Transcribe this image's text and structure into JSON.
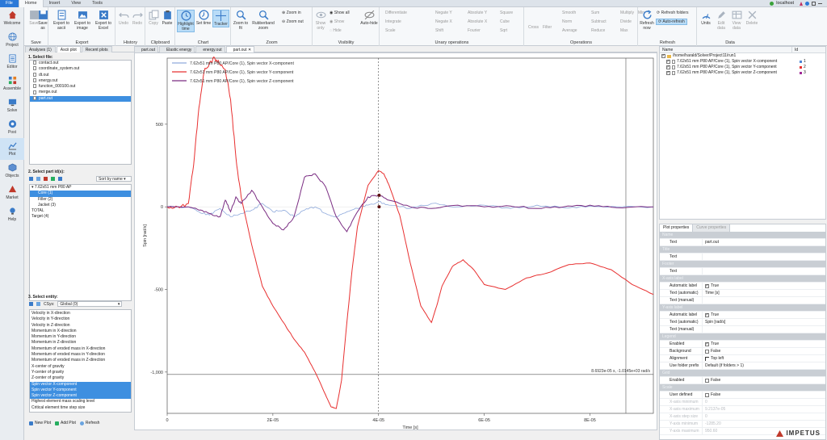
{
  "menu": {
    "tabs": [
      "File",
      "Home",
      "Insert",
      "View",
      "Tools"
    ],
    "active": "Home",
    "host": "localhost"
  },
  "ribbon": {
    "groups": [
      {
        "label": "Save",
        "buttons": [
          "Save",
          "Save as"
        ]
      },
      {
        "label": "Export",
        "buttons": [
          "Export to ascii",
          "Export to image",
          "Export to Excel"
        ]
      },
      {
        "label": "History",
        "buttons": [
          "Undo",
          "Redo"
        ]
      },
      {
        "label": "Clipboard",
        "buttons": [
          "Copy",
          "Paste"
        ]
      },
      {
        "label": "Chart",
        "buttons": [
          "Highlight time",
          "Set time",
          "Tracker"
        ]
      },
      {
        "label": "Zoom",
        "buttons": [
          "Zoom to fit",
          "Rubberband zoom"
        ],
        "small": [
          "Zoom in",
          "Zoom out"
        ]
      },
      {
        "label": "Visibility",
        "buttons": [
          "Show only"
        ],
        "small": [
          "Show all",
          "Show",
          "Hide",
          "Auto-hide"
        ]
      },
      {
        "label": "Unary operations",
        "small": [
          "Differentiate",
          "Integrate",
          "Scale",
          "Negate Y",
          "Negate X",
          "Shift",
          "Absolute Y",
          "Absolute X",
          "Fourier",
          "Square",
          "Cube",
          "Sqrt"
        ]
      },
      {
        "label": "Operations",
        "small": [
          "Cross",
          "Filter",
          "Smooth",
          "Norm",
          "Average",
          "Sum",
          "Subtract",
          "Reduce",
          "Multiply",
          "Divide",
          "Min",
          "Max"
        ]
      },
      {
        "label": "Refresh",
        "buttons": [
          "Refresh now"
        ],
        "small": [
          "Refresh folders",
          "Auto-refresh"
        ]
      },
      {
        "label": "Data",
        "buttons": [
          "Units",
          "Edit data",
          "View data",
          "Delete"
        ]
      }
    ]
  },
  "sidebar": {
    "items": [
      "Welcome",
      "Project",
      "Editor",
      "Assemble",
      "Solve",
      "Post",
      "Plot",
      "Objects",
      "Market",
      "Help"
    ],
    "active": "Plot"
  },
  "left_panel": {
    "tabs": [
      "Analyses (1)",
      "Ascii plot",
      "Recent plots"
    ],
    "active_tab": "Ascii plot",
    "select_file": {
      "title": "1. Select file:",
      "files": [
        "contact.out",
        "coordinate_system.out",
        "dt.out",
        "energy.out",
        "function_000100.out",
        "merge.out",
        "part.out"
      ],
      "selected": "part.out"
    },
    "select_part": {
      "title": "2. Select part id(s):",
      "sort": "Sort by name",
      "items": [
        "7.62x51 mm P80 AP",
        "Core (1)",
        "Filler (2)",
        "Jacket (3)",
        "TOTAL",
        "Target (4)"
      ],
      "selected": "Core (1)"
    },
    "select_entity": {
      "title": "3. Select entity:",
      "csys_label": "CSys:",
      "csys": "Global (0)",
      "items": [
        "Velocity in X-direction",
        "Velocity in Y-direction",
        "Velocity in Z-direction",
        "Momentum in X-direction",
        "Momentum in Y-direction",
        "Momentum in Z-direction",
        "Momentum of eroded mass in X-direction",
        "Momentum of eroded mass in Y-direction",
        "Momentum of eroded mass in Z-direction",
        "X-center of gravity",
        "Y-center of gravity",
        "Z-center of gravity",
        "Spin vector X-component",
        "Spin vector Y-component",
        "Spin vector Z-component",
        "Highest element mass scaling level",
        "Critical element time step size"
      ],
      "selected": [
        "Spin vector X-component",
        "Spin vector Y-component",
        "Spin vector Z-component"
      ]
    },
    "buttons": [
      "New Plot",
      "Add Plot",
      "Refresh"
    ]
  },
  "center_tabs": {
    "tabs": [
      "part.out",
      "Elastic energy",
      "energy.out",
      "part.out"
    ],
    "active_index": 3
  },
  "chart_data": {
    "type": "line",
    "xlabel": "Time [s]",
    "ylabel": "Spin [rad/s]",
    "xlim": [
      0,
      9.2e-05
    ],
    "ylim": [
      -1250,
      900
    ],
    "xticks": [
      0,
      2e-05,
      4e-05,
      6e-05,
      8e-05
    ],
    "xtick_labels": [
      "0",
      "2E-05",
      "4E-05",
      "6E-05",
      "8E-05"
    ],
    "yticks": [
      500,
      0,
      -500,
      -1000
    ],
    "ytick_labels": [
      "500",
      "0",
      "-500",
      "-1,000"
    ],
    "legend_position": "top-left",
    "tracker_label": "8.6923e-05 s, -1.0145e+03 rad/s",
    "tracker_x": 4e-05,
    "series": [
      {
        "name": "7.62x51 mm P80 AP/Core (1), Spin vector X-component",
        "color": "#8faadc",
        "x": [
          0,
          4e-06,
          6e-06,
          8e-06,
          1e-05,
          1.2e-05,
          1.4e-05,
          1.6e-05,
          1.8e-05,
          2e-05,
          2.2e-05,
          2.4e-05,
          2.6e-05,
          2.8e-05,
          3e-05,
          3.2e-05,
          3.4e-05,
          3.6e-05,
          3.8e-05,
          4e-05,
          4.2e-05,
          4.6e-05,
          5e-05,
          5.5e-05,
          6e-05,
          6.5e-05,
          7e-05,
          7.5e-05,
          8e-05,
          8.5e-05,
          9.2e-05
        ],
        "y": [
          0,
          0,
          -30,
          -50,
          -10,
          -60,
          -40,
          -20,
          20,
          -30,
          -20,
          -60,
          -20,
          0,
          -40,
          -60,
          -30,
          -10,
          10,
          30,
          10,
          -10,
          20,
          0,
          10,
          -10,
          10,
          -5,
          5,
          0,
          0
        ]
      },
      {
        "name": "7.62x51 mm P80 AP/Core (1), Spin vector Y-component",
        "color": "#e83030",
        "x": [
          0,
          2e-06,
          4e-06,
          5e-06,
          6e-06,
          7e-06,
          8e-06,
          9e-06,
          1e-05,
          1.1e-05,
          1.2e-05,
          1.3e-05,
          1.4e-05,
          1.6e-05,
          1.8e-05,
          2e-05,
          2.2e-05,
          2.4e-05,
          2.6e-05,
          2.8e-05,
          3e-05,
          3.1e-05,
          3.2e-05,
          3.3e-05,
          3.4e-05,
          3.5e-05,
          3.6e-05,
          3.8e-05,
          4e-05,
          4.1e-05,
          4.2e-05,
          4.4e-05,
          4.6e-05,
          4.8e-05,
          5e-05,
          5.1e-05,
          5.2e-05,
          5.4e-05,
          5.6e-05,
          5.8e-05,
          6e-05,
          6.4e-05,
          6.8e-05,
          7.2e-05,
          7.6e-05,
          8e-05,
          8.4e-05,
          8.8e-05,
          9.2e-05
        ],
        "y": [
          0,
          0,
          20,
          250,
          600,
          820,
          870,
          900,
          860,
          830,
          650,
          300,
          60,
          -230,
          -480,
          -600,
          -700,
          -800,
          -880,
          -1000,
          -1140,
          -1210,
          -1220,
          -1050,
          -700,
          -380,
          -120,
          130,
          220,
          200,
          130,
          -50,
          -340,
          -600,
          -700,
          -600,
          -480,
          -360,
          -320,
          -380,
          -470,
          -500,
          -430,
          -400,
          -350,
          -340,
          -380,
          -470,
          -530
        ]
      },
      {
        "name": "7.62x51 mm P80 AP/Core (1), Spin vector Z-component",
        "color": "#7a2c82",
        "x": [
          0,
          4e-06,
          6e-06,
          8e-06,
          1e-05,
          1.1e-05,
          1.2e-05,
          1.3e-05,
          1.4e-05,
          1.6e-05,
          1.8e-05,
          2e-05,
          2.2e-05,
          2.4e-05,
          2.6e-05,
          2.8e-05,
          3e-05,
          3.2e-05,
          3.4e-05,
          3.6e-05,
          3.8e-05,
          4e-05,
          4.2e-05,
          4.6e-05,
          5e-05,
          5.5e-05,
          6e-05,
          6.5e-05,
          7e-05,
          7.5e-05,
          8e-05,
          8.5e-05,
          9.2e-05
        ],
        "y": [
          0,
          0,
          -20,
          -40,
          -60,
          40,
          -30,
          60,
          20,
          100,
          0,
          -100,
          -140,
          -60,
          180,
          200,
          120,
          -60,
          -150,
          -30,
          60,
          70,
          40,
          0,
          -10,
          10,
          0,
          5,
          -10,
          0,
          10,
          -5,
          0
        ]
      }
    ],
    "markers": [
      {
        "x": 4.01e-05,
        "y": 70
      },
      {
        "x": 4.01e-05,
        "y": 0
      }
    ]
  },
  "right_panel": {
    "tree_headers": [
      "Name",
      "Id"
    ],
    "root": "/home/harald/Solver/Project11/run1",
    "entries": [
      {
        "label": "7.62x51 mm P80 AP/Core (1), Spin vector X-component",
        "id": "1",
        "color": "#4f86d6"
      },
      {
        "label": "7.62x51 mm P80 AP/Core (1), Spin vector Y-component",
        "id": "2",
        "color": "#e83030"
      },
      {
        "label": "7.62x51 mm P80 AP/Core (1), Spin vector Z-component",
        "id": "3",
        "color": "#a02896"
      }
    ],
    "prop_tabs": [
      "Plot properties",
      "Curve properties"
    ],
    "props": [
      {
        "type": "grp",
        "k": "Name"
      },
      {
        "k": "Text",
        "v": "part.out"
      },
      {
        "type": "grp",
        "k": "Title"
      },
      {
        "k": "Text",
        "v": ""
      },
      {
        "type": "grp",
        "k": "Footer"
      },
      {
        "k": "Text",
        "v": ""
      },
      {
        "type": "grp",
        "k": "X-axis label"
      },
      {
        "k": "Automatic label",
        "v": "True",
        "cb": true
      },
      {
        "k": "Text (automatic)",
        "v": "Time [s]"
      },
      {
        "k": "Text (manual)",
        "v": ""
      },
      {
        "type": "grp",
        "k": "Y-axis label"
      },
      {
        "k": "Automatic label",
        "v": "True",
        "cb": true
      },
      {
        "k": "Text (automatic)",
        "v": "Spin [rad/s]"
      },
      {
        "k": "Text (manual)",
        "v": ""
      },
      {
        "type": "grp",
        "k": "Legend"
      },
      {
        "k": "Enabled",
        "v": "True",
        "cb": true
      },
      {
        "k": "Background",
        "v": "False",
        "cb": false
      },
      {
        "k": "Alignment",
        "v": "Top left",
        "cb": false
      },
      {
        "k": "Use folder prefix",
        "v": "Default (if folders > 1)"
      },
      {
        "type": "grp",
        "k": "Grid"
      },
      {
        "k": "Enabled",
        "v": "False",
        "cb": false
      },
      {
        "type": "grp",
        "k": "Scale"
      },
      {
        "k": "User defined",
        "v": "False",
        "cb": false
      },
      {
        "k": "X-axis minimum",
        "v": "0",
        "dim": true
      },
      {
        "k": "X-axis maximum",
        "v": "9.2137e-05",
        "dim": true
      },
      {
        "k": "X-axis step size",
        "v": "0",
        "dim": true
      },
      {
        "k": "Y-axis minimum",
        "v": "-1285.20",
        "dim": true
      },
      {
        "k": "Y-axis maximum",
        "v": "950.60",
        "dim": true
      }
    ]
  },
  "brand": "IMPETUS",
  "colors": {
    "accent": "#2b79d8",
    "selection": "#3e8fe0"
  }
}
